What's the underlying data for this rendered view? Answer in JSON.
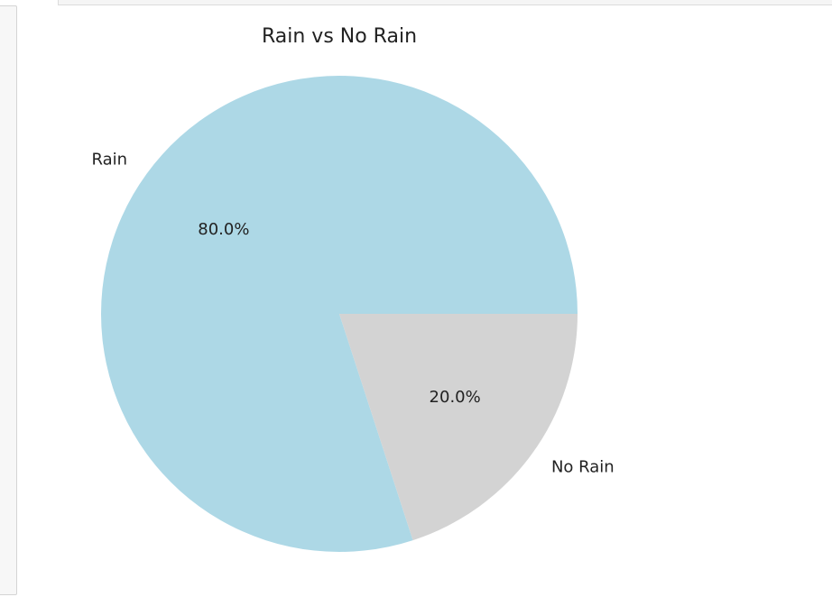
{
  "chart_data": {
    "type": "pie",
    "title": "Rain vs No Rain",
    "categories": [
      "Rain",
      "No Rain"
    ],
    "values": [
      80.0,
      20.0
    ],
    "percent_labels": [
      "80.0%",
      "20.0%"
    ],
    "colors": [
      "#add8e6",
      "#d3d3d3"
    ],
    "start_angle_deg": 0,
    "direction": "counterclockwise",
    "legend": "none",
    "grid": false
  }
}
